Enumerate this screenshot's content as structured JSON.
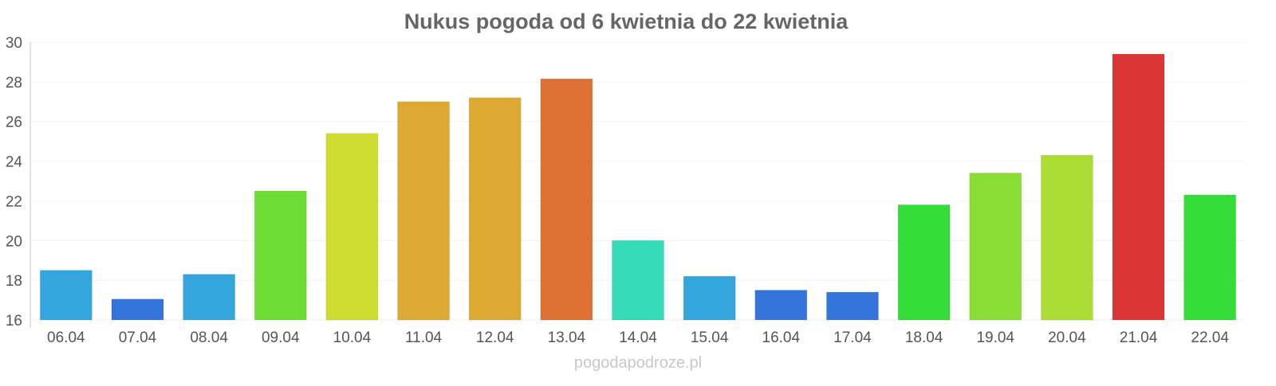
{
  "chart_data": {
    "type": "bar",
    "title": "Nukus pogoda od 6 kwietnia do 22 kwietnia",
    "xlabel": "",
    "ylabel": "",
    "ylim": [
      16,
      30
    ],
    "yticks": [
      16,
      18,
      20,
      22,
      24,
      26,
      28,
      30
    ],
    "grid": true,
    "categories": [
      "06.04",
      "07.04",
      "08.04",
      "09.04",
      "10.04",
      "11.04",
      "12.04",
      "13.04",
      "14.04",
      "15.04",
      "16.04",
      "17.04",
      "18.04",
      "19.04",
      "20.04",
      "21.04",
      "22.04"
    ],
    "values": [
      18.5,
      17.05,
      18.3,
      22.5,
      25.4,
      27.0,
      27.2,
      28.15,
      20.0,
      18.2,
      17.5,
      17.4,
      21.8,
      23.4,
      24.3,
      29.4,
      22.3
    ],
    "colors": [
      "#35a6dd",
      "#3475db",
      "#35a6dd",
      "#6cdd35",
      "#cedd32",
      "#dcaa33",
      "#dcaa33",
      "#dd7133",
      "#35dbb9",
      "#35a6dd",
      "#3475db",
      "#3475db",
      "#35dd3a",
      "#8bdd35",
      "#acdd35",
      "#dc3535",
      "#35dd3a"
    ]
  },
  "watermark": "pogodapodroze.pl"
}
